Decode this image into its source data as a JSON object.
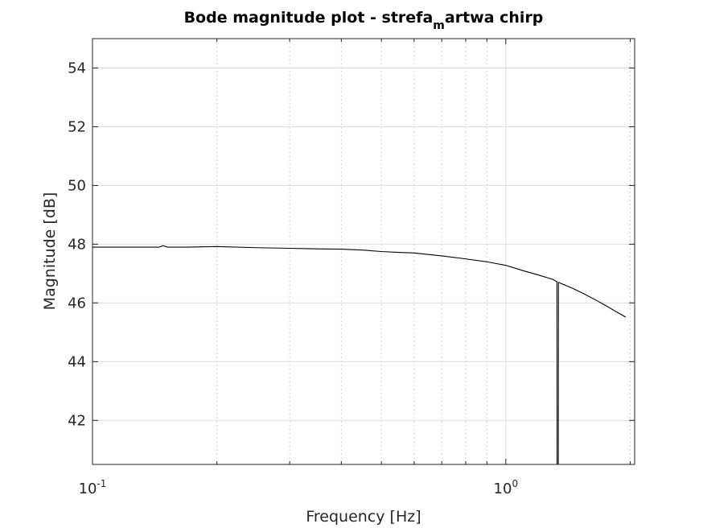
{
  "chart_data": {
    "type": "line",
    "title": {
      "main": "Bode magnitude plot - strefa",
      "subscript": "m",
      "rest": "artwa chirp"
    },
    "xlabel": "Frequency [Hz]",
    "ylabel": "Magnitude [dB]",
    "xscale": "log",
    "xlim": [
      0.1,
      2.05
    ],
    "ylim": [
      40.5,
      55
    ],
    "grid": true,
    "x_ticks": [
      {
        "value": 0.1,
        "base": "10",
        "exponent": "-1"
      },
      {
        "value": 1,
        "base": "10",
        "exponent": "0"
      }
    ],
    "y_ticks": [
      {
        "value": 42,
        "label": "42"
      },
      {
        "value": 44,
        "label": "44"
      },
      {
        "value": 46,
        "label": "46"
      },
      {
        "value": 48,
        "label": "48"
      },
      {
        "value": 50,
        "label": "50"
      },
      {
        "value": 52,
        "label": "52"
      },
      {
        "value": 54,
        "label": "54"
      }
    ],
    "series": [
      {
        "color": "#000000",
        "x": [
          0.1,
          0.12,
          0.145,
          0.148,
          0.152,
          0.17,
          0.2,
          0.25,
          0.3,
          0.35,
          0.4,
          0.45,
          0.5,
          0.55,
          0.6,
          0.65,
          0.7,
          0.8,
          0.9,
          1.0,
          1.1,
          1.2,
          1.3,
          1.33,
          1.331,
          1.34,
          1.341,
          1.45,
          1.55,
          1.65,
          1.75,
          1.85,
          1.95
        ],
        "y": [
          47.9,
          47.9,
          47.9,
          47.95,
          47.9,
          47.9,
          47.92,
          47.88,
          47.86,
          47.84,
          47.83,
          47.8,
          47.75,
          47.72,
          47.7,
          47.65,
          47.6,
          47.5,
          47.4,
          47.28,
          47.1,
          46.95,
          46.8,
          46.72,
          40.5,
          40.5,
          46.7,
          46.5,
          46.3,
          46.1,
          45.9,
          45.7,
          45.52
        ]
      }
    ]
  }
}
